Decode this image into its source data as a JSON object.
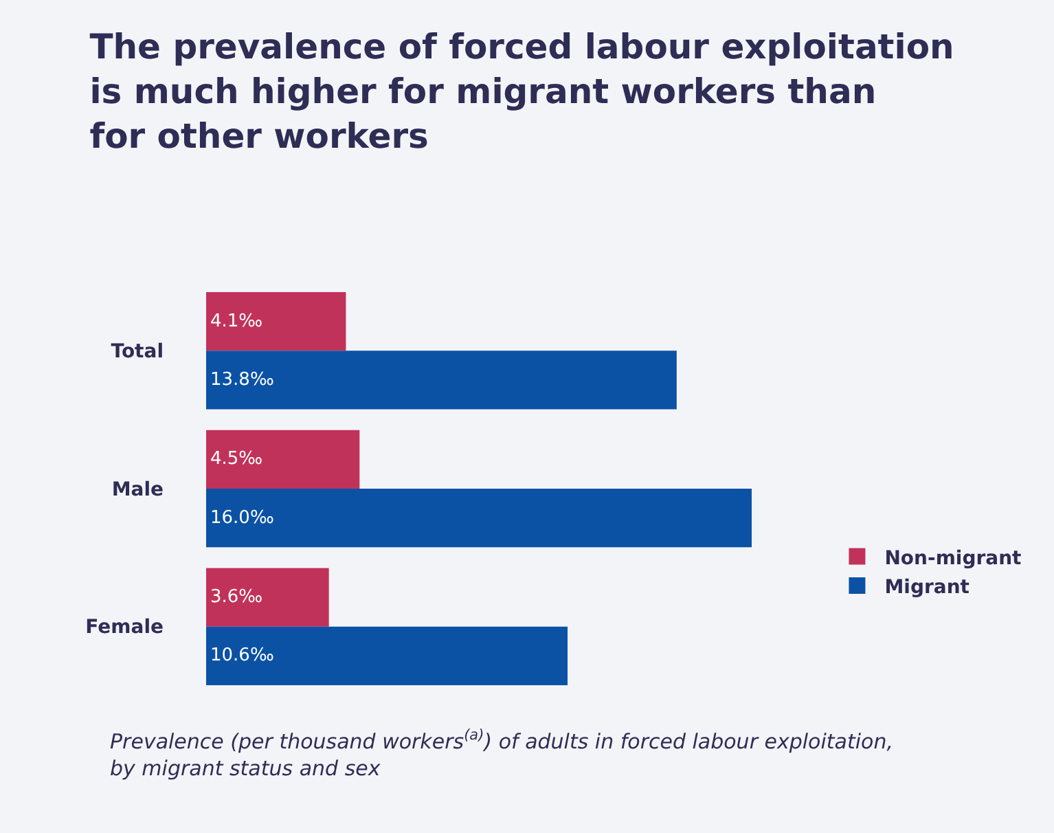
{
  "chart_data": {
    "type": "bar",
    "orientation": "horizontal",
    "title": "The prevalence of forced labour exploitation\nis much higher for migrant workers than\nfor other workers",
    "categories": [
      "Total",
      "Male",
      "Female"
    ],
    "series": [
      {
        "name": "Non-migrant",
        "color": "#c1325a",
        "values": [
          4.1,
          4.5,
          3.6
        ],
        "value_labels": [
          "4.1‰",
          "4.5‰",
          "3.6‰"
        ]
      },
      {
        "name": "Migrant",
        "color": "#0b52a5",
        "values": [
          13.8,
          16.0,
          10.6
        ],
        "value_labels": [
          "13.8‰",
          "16.0‰",
          "10.6‰"
        ]
      }
    ],
    "annotations": [
      "Prevalence (per thousand workers$^{(a)}$) of adults in forced labour exploitation,\nby migrant status and sex"
    ],
    "tick_labels": "y",
    "grid": false,
    "legend": "right"
  }
}
